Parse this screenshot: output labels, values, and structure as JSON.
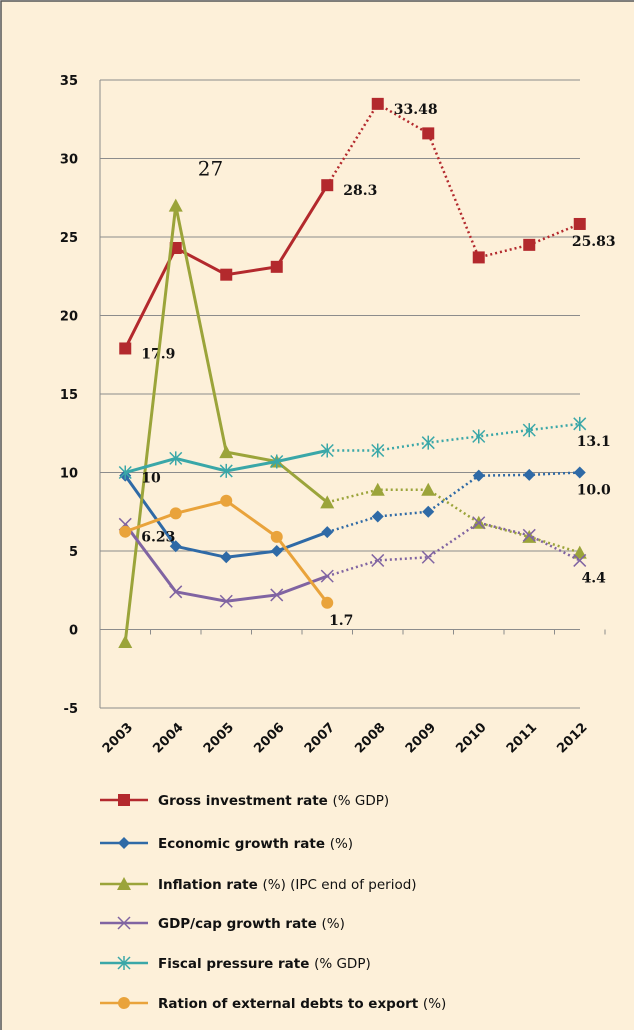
{
  "chart_data": {
    "type": "line",
    "categories": [
      "2003",
      "2004",
      "2005",
      "2006",
      "2007",
      "2008",
      "2009",
      "2010",
      "2011",
      "2012"
    ],
    "ylim": [
      -5,
      35
    ],
    "yticks": [
      -5,
      0,
      5,
      10,
      15,
      20,
      25,
      30,
      35
    ],
    "grid": true,
    "series": [
      {
        "name": "Gross investment rate (% GDP)",
        "color": "#b3292d",
        "marker": "square",
        "values": [
          17.9,
          24.3,
          22.6,
          23.1,
          28.3,
          33.48,
          31.6,
          23.7,
          24.5,
          25.83
        ],
        "value_labels": [
          "17.9",
          null,
          null,
          null,
          "28.3",
          "33.48",
          null,
          null,
          null,
          "25.83"
        ]
      },
      {
        "name": "Economic growth rate (%)",
        "color": "#2f6aa6",
        "marker": "diamond",
        "values": [
          9.8,
          5.3,
          4.6,
          5.0,
          6.2,
          7.2,
          7.5,
          9.8,
          9.85,
          10.0
        ],
        "value_labels": [
          null,
          null,
          null,
          null,
          null,
          null,
          null,
          null,
          null,
          "10.0"
        ]
      },
      {
        "name": "Inflation rate (%) (IPC end of period)",
        "color": "#9ba43a",
        "marker": "triangle",
        "values": [
          -0.8,
          27,
          11.3,
          10.7,
          8.1,
          8.9,
          8.9,
          6.8,
          5.9,
          4.9
        ],
        "value_labels": [
          null,
          "27",
          null,
          null,
          null,
          null,
          null,
          null,
          null,
          null
        ]
      },
      {
        "name": "GDP/cap growth rate (%)",
        "color": "#8064a2",
        "marker": "x",
        "values": [
          6.7,
          2.4,
          1.8,
          2.2,
          3.4,
          4.4,
          4.6,
          6.8,
          6.0,
          4.4
        ],
        "value_labels": [
          null,
          null,
          null,
          null,
          null,
          null,
          null,
          null,
          null,
          "4.4"
        ]
      },
      {
        "name": "Fiscal pressure rate (% GDP)",
        "color": "#3aa7a8",
        "marker": "star",
        "values": [
          10,
          10.9,
          10.1,
          10.7,
          11.4,
          11.4,
          11.9,
          12.3,
          12.7,
          13.1
        ],
        "value_labels": [
          "10",
          null,
          null,
          null,
          null,
          null,
          null,
          null,
          null,
          "13.1"
        ]
      },
      {
        "name": "Ration of external debts to export (%)",
        "color": "#e9a33b",
        "marker": "circle",
        "values": [
          6.23,
          7.4,
          8.2,
          5.9,
          1.7,
          null,
          null,
          null,
          null,
          null
        ],
        "value_labels": [
          "6.23",
          null,
          null,
          null,
          "1.7",
          null,
          null,
          null,
          null,
          null
        ]
      }
    ]
  }
}
